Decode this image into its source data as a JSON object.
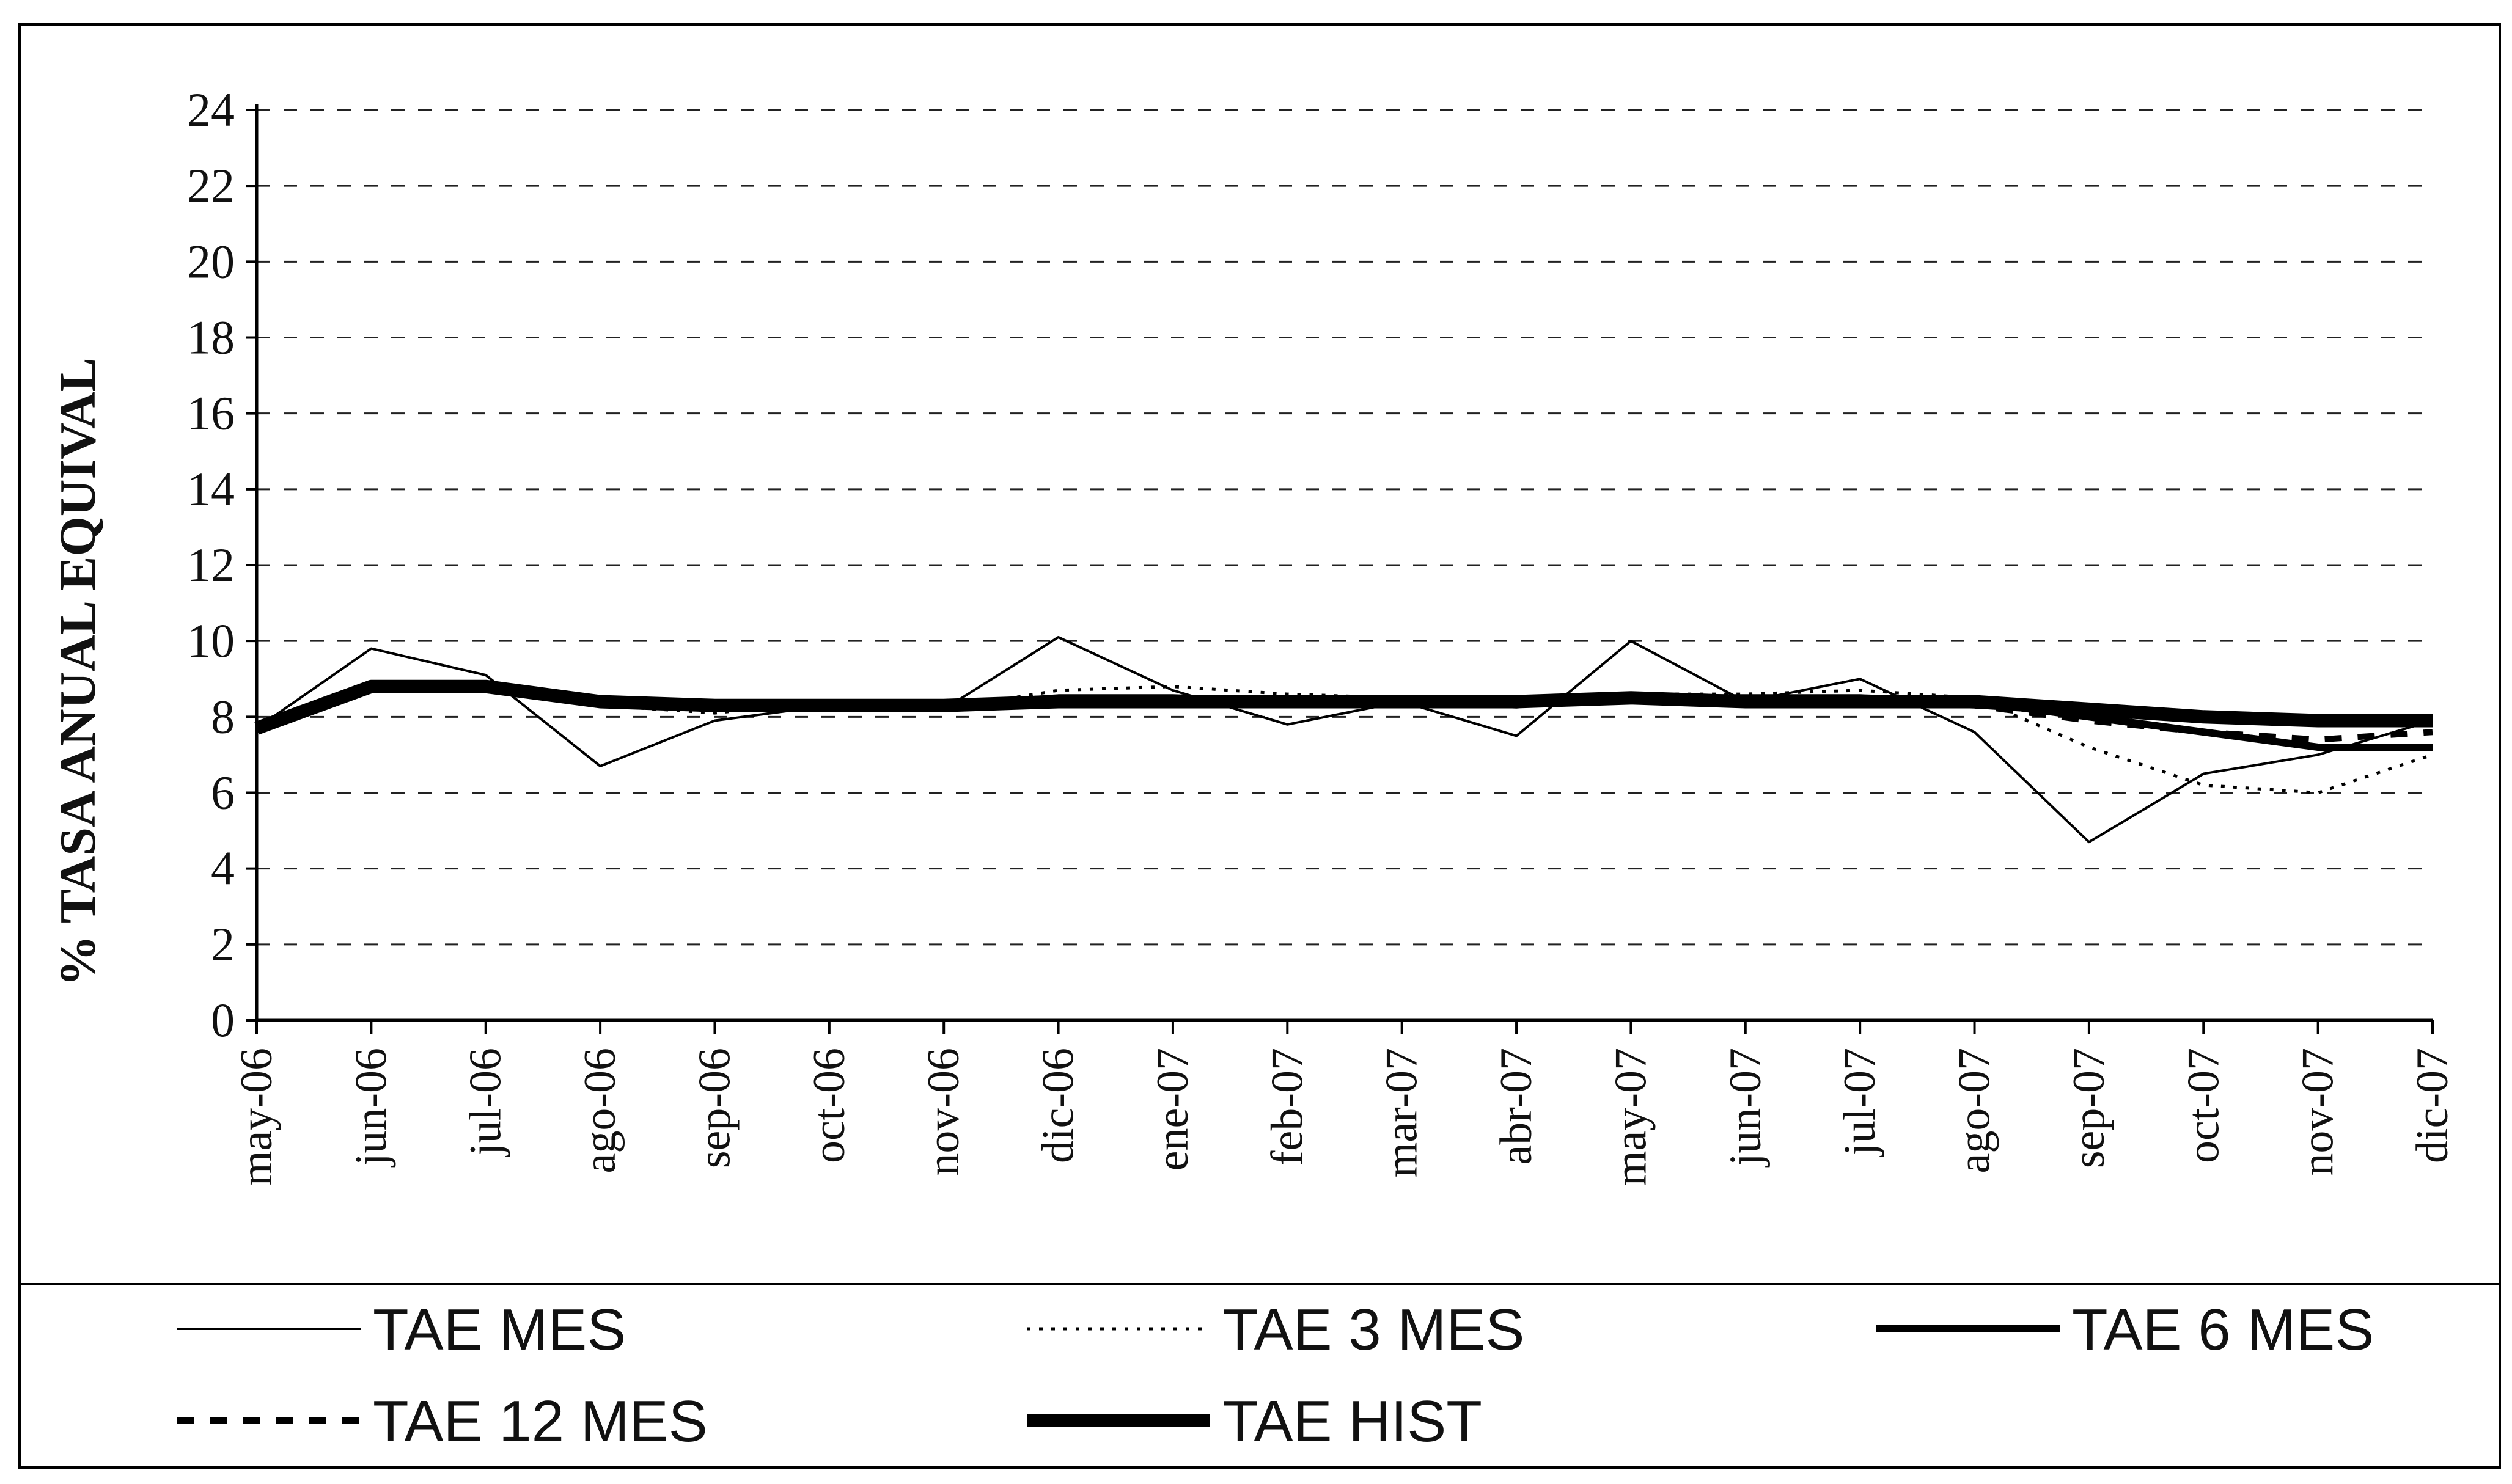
{
  "chart_data": {
    "type": "line",
    "title": "",
    "xlabel": "",
    "ylabel": "% TASA ANUAL EQUIVAL",
    "ylim": [
      0,
      24
    ],
    "yticks": [
      0,
      2,
      4,
      6,
      8,
      10,
      12,
      14,
      16,
      18,
      20,
      22,
      24
    ],
    "grid": "horizontal dashed",
    "legend_position": "bottom",
    "categories": [
      "may-06",
      "jun-06",
      "jul-06",
      "ago-06",
      "sep-06",
      "oct-06",
      "nov-06",
      "dic-06",
      "ene-07",
      "feb-07",
      "mar-07",
      "abr-07",
      "may-07",
      "jun-07",
      "jul-07",
      "ago-07",
      "sep-07",
      "oct-07",
      "nov-07",
      "dic-07"
    ],
    "series": [
      {
        "name": "TAE MES",
        "color": "#000000",
        "style": "thin-solid",
        "values": [
          7.7,
          9.8,
          9.1,
          6.7,
          7.9,
          8.3,
          8.2,
          10.1,
          8.7,
          7.8,
          8.4,
          7.5,
          10.0,
          8.4,
          9.0,
          7.6,
          4.7,
          6.5,
          7.0,
          7.9
        ]
      },
      {
        "name": "TAE 3 MES",
        "color": "#000000",
        "style": "dotted",
        "values": [
          7.7,
          8.7,
          8.8,
          8.3,
          8.1,
          8.4,
          8.2,
          8.7,
          8.8,
          8.6,
          8.5,
          8.3,
          8.6,
          8.6,
          8.7,
          8.5,
          7.2,
          6.2,
          6.0,
          7.0
        ]
      },
      {
        "name": "TAE 6 MES",
        "color": "#000000",
        "style": "medium-solid",
        "values": [
          7.7,
          8.8,
          8.8,
          8.4,
          8.3,
          8.3,
          8.3,
          8.5,
          8.5,
          8.4,
          8.4,
          8.4,
          8.5,
          8.5,
          8.5,
          8.4,
          8.0,
          7.6,
          7.2,
          7.2
        ]
      },
      {
        "name": "TAE 12 MES",
        "color": "#000000",
        "style": "dashed",
        "values": [
          7.7,
          8.8,
          8.8,
          8.4,
          8.2,
          8.2,
          8.3,
          8.5,
          8.5,
          8.4,
          8.4,
          8.3,
          8.5,
          8.5,
          8.4,
          8.3,
          7.9,
          7.6,
          7.4,
          7.6
        ]
      },
      {
        "name": "TAE HIST",
        "color": "#000000",
        "style": "thick-solid",
        "values": [
          7.7,
          8.8,
          8.8,
          8.4,
          8.3,
          8.3,
          8.3,
          8.4,
          8.4,
          8.4,
          8.4,
          8.4,
          8.5,
          8.4,
          8.4,
          8.4,
          8.2,
          8.0,
          7.9,
          7.9
        ]
      }
    ]
  }
}
